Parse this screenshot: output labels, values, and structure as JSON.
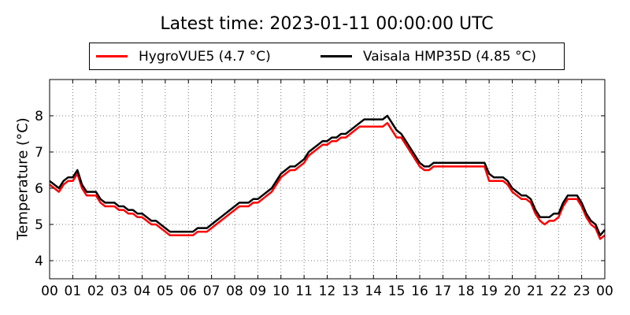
{
  "title": "Latest time: 2023-01-11 00:00:00 UTC",
  "colors": {
    "hygrovue": "#ff0000",
    "vaisala": "#000000",
    "grid": "#555555"
  },
  "chart_data": {
    "type": "line",
    "title": "Latest time: 2023-01-11 00:00:00 UTC",
    "xlabel": "",
    "ylabel": "Temperature (°C)",
    "xlim": [
      0,
      24
    ],
    "ylim": [
      3.5,
      9.0
    ],
    "grid": true,
    "legend_position": "top",
    "x_ticks": [
      0,
      1,
      2,
      3,
      4,
      5,
      6,
      7,
      8,
      9,
      10,
      11,
      12,
      13,
      14,
      15,
      16,
      17,
      18,
      19,
      20,
      21,
      22,
      23,
      24
    ],
    "x_tick_labels": [
      "00",
      "01",
      "02",
      "03",
      "04",
      "05",
      "06",
      "07",
      "08",
      "09",
      "10",
      "11",
      "12",
      "13",
      "14",
      "15",
      "16",
      "17",
      "18",
      "19",
      "20",
      "21",
      "22",
      "23",
      "00"
    ],
    "y_ticks": [
      4,
      5,
      6,
      7,
      8
    ],
    "y_tick_labels": [
      "4",
      "5",
      "6",
      "7",
      "8"
    ],
    "series": [
      {
        "name": "HygroVUE5 (4.7 °C)",
        "color": "#ff0000",
        "x": [
          0,
          0.2,
          0.4,
          0.6,
          0.8,
          1.0,
          1.2,
          1.4,
          1.6,
          1.8,
          2.0,
          2.2,
          2.4,
          2.6,
          2.8,
          3.0,
          3.2,
          3.4,
          3.6,
          3.8,
          4.0,
          4.2,
          4.4,
          4.6,
          4.8,
          5.0,
          5.2,
          5.4,
          5.6,
          5.8,
          6.0,
          6.2,
          6.4,
          6.6,
          6.8,
          7.0,
          7.2,
          7.4,
          7.6,
          7.8,
          8.0,
          8.2,
          8.4,
          8.6,
          8.8,
          9.0,
          9.2,
          9.4,
          9.6,
          9.8,
          10.0,
          10.2,
          10.4,
          10.6,
          10.8,
          11.0,
          11.2,
          11.4,
          11.6,
          11.8,
          12.0,
          12.2,
          12.4,
          12.6,
          12.8,
          13.0,
          13.2,
          13.4,
          13.6,
          13.8,
          14.0,
          14.2,
          14.4,
          14.6,
          14.8,
          15.0,
          15.2,
          15.4,
          15.6,
          15.8,
          16.0,
          16.2,
          16.4,
          16.6,
          16.8,
          17.0,
          17.2,
          17.4,
          17.6,
          17.8,
          18.0,
          18.2,
          18.4,
          18.6,
          18.8,
          19.0,
          19.2,
          19.4,
          19.6,
          19.8,
          20.0,
          20.2,
          20.4,
          20.6,
          20.8,
          21.0,
          21.2,
          21.4,
          21.6,
          21.8,
          22.0,
          22.2,
          22.4,
          22.6,
          22.8,
          23.0,
          23.2,
          23.4,
          23.6,
          23.8,
          24.0
        ],
        "values": [
          6.1,
          6.0,
          5.9,
          6.1,
          6.2,
          6.2,
          6.4,
          6.0,
          5.8,
          5.8,
          5.8,
          5.6,
          5.5,
          5.5,
          5.5,
          5.4,
          5.4,
          5.3,
          5.3,
          5.2,
          5.2,
          5.1,
          5.0,
          5.0,
          4.9,
          4.8,
          4.7,
          4.7,
          4.7,
          4.7,
          4.7,
          4.7,
          4.8,
          4.8,
          4.8,
          4.9,
          5.0,
          5.1,
          5.2,
          5.3,
          5.4,
          5.5,
          5.5,
          5.5,
          5.6,
          5.6,
          5.7,
          5.8,
          5.9,
          6.1,
          6.3,
          6.4,
          6.5,
          6.5,
          6.6,
          6.7,
          6.9,
          7.0,
          7.1,
          7.2,
          7.2,
          7.3,
          7.3,
          7.4,
          7.4,
          7.5,
          7.6,
          7.7,
          7.7,
          7.7,
          7.7,
          7.7,
          7.7,
          7.8,
          7.6,
          7.4,
          7.4,
          7.2,
          7.0,
          6.8,
          6.6,
          6.5,
          6.5,
          6.6,
          6.6,
          6.6,
          6.6,
          6.6,
          6.6,
          6.6,
          6.6,
          6.6,
          6.6,
          6.6,
          6.6,
          6.2,
          6.2,
          6.2,
          6.2,
          6.1,
          5.9,
          5.8,
          5.7,
          5.7,
          5.6,
          5.3,
          5.1,
          5.0,
          5.1,
          5.1,
          5.2,
          5.5,
          5.7,
          5.7,
          5.7,
          5.5,
          5.2,
          5.0,
          4.9,
          4.6,
          4.7
        ]
      },
      {
        "name": "Vaisala HMP35D (4.85 °C)",
        "color": "#000000",
        "x": [
          0,
          0.2,
          0.4,
          0.6,
          0.8,
          1.0,
          1.2,
          1.4,
          1.6,
          1.8,
          2.0,
          2.2,
          2.4,
          2.6,
          2.8,
          3.0,
          3.2,
          3.4,
          3.6,
          3.8,
          4.0,
          4.2,
          4.4,
          4.6,
          4.8,
          5.0,
          5.2,
          5.4,
          5.6,
          5.8,
          6.0,
          6.2,
          6.4,
          6.6,
          6.8,
          7.0,
          7.2,
          7.4,
          7.6,
          7.8,
          8.0,
          8.2,
          8.4,
          8.6,
          8.8,
          9.0,
          9.2,
          9.4,
          9.6,
          9.8,
          10.0,
          10.2,
          10.4,
          10.6,
          10.8,
          11.0,
          11.2,
          11.4,
          11.6,
          11.8,
          12.0,
          12.2,
          12.4,
          12.6,
          12.8,
          13.0,
          13.2,
          13.4,
          13.6,
          13.8,
          14.0,
          14.2,
          14.4,
          14.6,
          14.8,
          15.0,
          15.2,
          15.4,
          15.6,
          15.8,
          16.0,
          16.2,
          16.4,
          16.6,
          16.8,
          17.0,
          17.2,
          17.4,
          17.6,
          17.8,
          18.0,
          18.2,
          18.4,
          18.6,
          18.8,
          19.0,
          19.2,
          19.4,
          19.6,
          19.8,
          20.0,
          20.2,
          20.4,
          20.6,
          20.8,
          21.0,
          21.2,
          21.4,
          21.6,
          21.8,
          22.0,
          22.2,
          22.4,
          22.6,
          22.8,
          23.0,
          23.2,
          23.4,
          23.6,
          23.8,
          24.0
        ],
        "values": [
          6.2,
          6.1,
          6.0,
          6.2,
          6.3,
          6.3,
          6.5,
          6.1,
          5.9,
          5.9,
          5.9,
          5.7,
          5.6,
          5.6,
          5.6,
          5.5,
          5.5,
          5.4,
          5.4,
          5.3,
          5.3,
          5.2,
          5.1,
          5.1,
          5.0,
          4.9,
          4.8,
          4.8,
          4.8,
          4.8,
          4.8,
          4.8,
          4.9,
          4.9,
          4.9,
          5.0,
          5.1,
          5.2,
          5.3,
          5.4,
          5.5,
          5.6,
          5.6,
          5.6,
          5.7,
          5.7,
          5.8,
          5.9,
          6.0,
          6.2,
          6.4,
          6.5,
          6.6,
          6.6,
          6.7,
          6.8,
          7.0,
          7.1,
          7.2,
          7.3,
          7.3,
          7.4,
          7.4,
          7.5,
          7.5,
          7.6,
          7.7,
          7.8,
          7.9,
          7.9,
          7.9,
          7.9,
          7.9,
          8.0,
          7.8,
          7.6,
          7.5,
          7.3,
          7.1,
          6.9,
          6.7,
          6.6,
          6.6,
          6.7,
          6.7,
          6.7,
          6.7,
          6.7,
          6.7,
          6.7,
          6.7,
          6.7,
          6.7,
          6.7,
          6.7,
          6.4,
          6.3,
          6.3,
          6.3,
          6.2,
          6.0,
          5.9,
          5.8,
          5.8,
          5.7,
          5.4,
          5.2,
          5.2,
          5.2,
          5.3,
          5.3,
          5.6,
          5.8,
          5.8,
          5.8,
          5.6,
          5.3,
          5.1,
          5.0,
          4.7,
          4.85
        ]
      }
    ]
  }
}
